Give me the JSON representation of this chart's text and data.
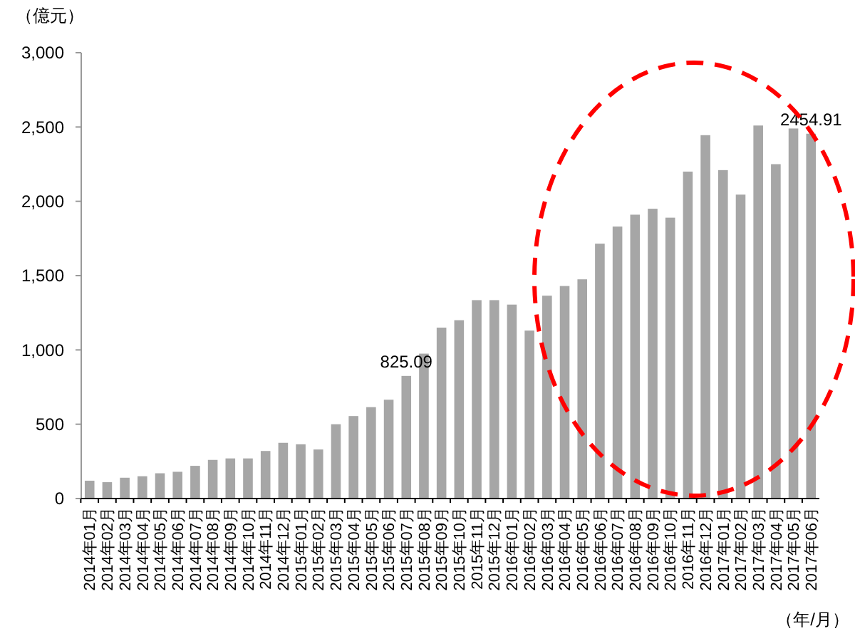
{
  "chart_data": {
    "type": "bar",
    "ylabel": "（億元）",
    "xlabel": "（年/月）",
    "categories": [
      "2014年01月",
      "2014年02月",
      "2014年03月",
      "2014年04月",
      "2014年05月",
      "2014年06月",
      "2014年07月",
      "2014年08月",
      "2014年09月",
      "2014年10月",
      "2014年11月",
      "2014年12月",
      "2015年01月",
      "2015年02月",
      "2015年03月",
      "2015年04月",
      "2015年05月",
      "2015年06月",
      "2015年07月",
      "2015年08月",
      "2015年09月",
      "2015年10月",
      "2015年11月",
      "2015年12月",
      "2016年01月",
      "2016年02月",
      "2016年03月",
      "2016年04月",
      "2016年05月",
      "2016年06月",
      "2016年07月",
      "2016年08月",
      "2016年09月",
      "2016年10月",
      "2016年11月",
      "2016年12月",
      "2017年01月",
      "2017年02月",
      "2017年03月",
      "2017年04月",
      "2017年05月",
      "2017年06月"
    ],
    "values": [
      120,
      110,
      140,
      150,
      170,
      180,
      220,
      260,
      270,
      270,
      320,
      375,
      365,
      330,
      500,
      555,
      615,
      665,
      825.09,
      975,
      1150,
      1200,
      1335,
      1335,
      1305,
      1130,
      1365,
      1430,
      1475,
      1715,
      1830,
      1910,
      1950,
      1890,
      2200,
      2445,
      2210,
      2045,
      2510,
      2250,
      2490,
      2454.91
    ],
    "value_labels": [
      null,
      null,
      null,
      null,
      null,
      null,
      null,
      null,
      null,
      null,
      null,
      null,
      null,
      null,
      null,
      null,
      null,
      null,
      "825.09",
      null,
      null,
      null,
      null,
      null,
      null,
      null,
      null,
      null,
      null,
      null,
      null,
      null,
      null,
      null,
      null,
      null,
      null,
      null,
      null,
      null,
      null,
      "2454.91"
    ],
    "color": "#a6a6a6",
    "ylim": [
      0,
      3000
    ],
    "yticks": [
      {
        "value": 0,
        "label": "0"
      },
      {
        "value": 500,
        "label": "500"
      },
      {
        "value": 1000,
        "label": "1,000"
      },
      {
        "value": 1500,
        "label": "1,500"
      },
      {
        "value": 2000,
        "label": "2,000"
      },
      {
        "value": 2500,
        "label": "2,500"
      },
      {
        "value": 3000,
        "label": "3,000"
      }
    ],
    "grid": false
  }
}
